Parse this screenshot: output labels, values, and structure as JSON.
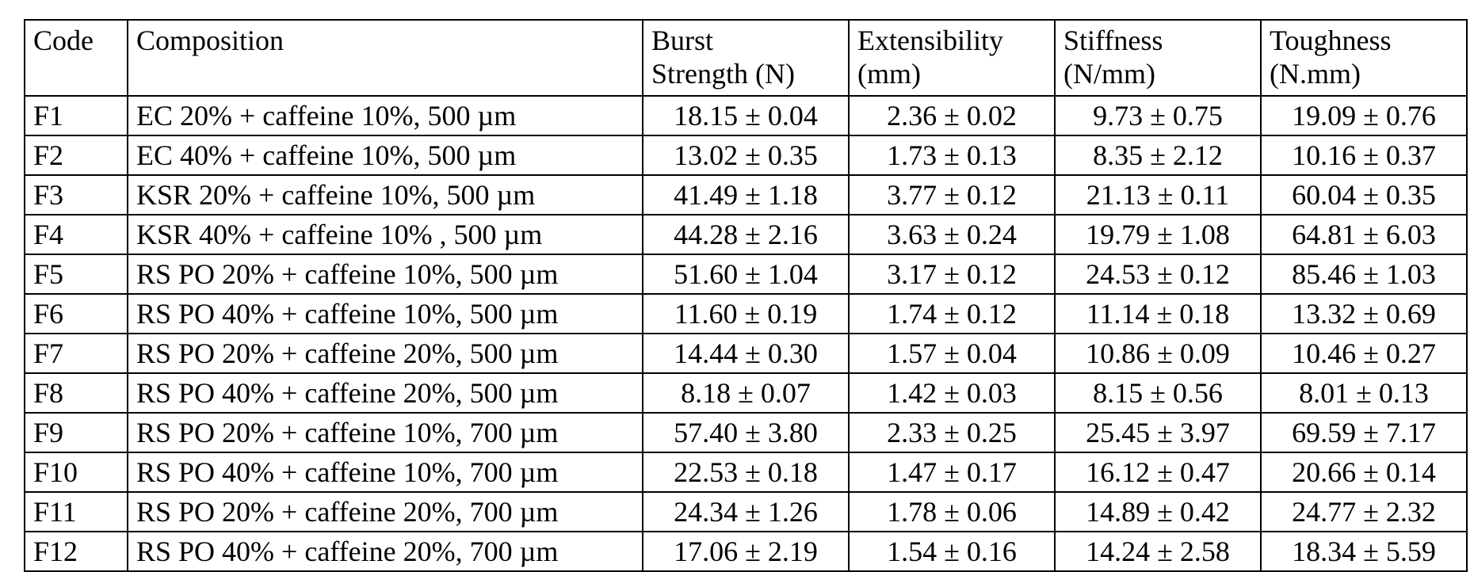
{
  "table": {
    "headers": {
      "code": [
        "Code"
      ],
      "composition": [
        "Composition"
      ],
      "burst": [
        "Burst",
        "Strength (N)"
      ],
      "extensibility": [
        "Extensibility",
        "(mm)"
      ],
      "stiffness": [
        "Stiffness",
        "(N/mm)"
      ],
      "toughness": [
        "Toughness",
        "(N.mm)"
      ]
    },
    "rows": [
      {
        "code": "F1",
        "composition": "EC 20% + caffeine 10%, 500 µm",
        "burst": "18.15 ± 0.04",
        "extensibility": "2.36 ± 0.02",
        "stiffness": "9.73 ± 0.75",
        "toughness": "19.09 ± 0.76"
      },
      {
        "code": "F2",
        "composition": "EC 40% + caffeine 10%, 500 µm",
        "burst": "13.02 ± 0.35",
        "extensibility": "1.73 ± 0.13",
        "stiffness": "8.35 ± 2.12",
        "toughness": "10.16 ± 0.37"
      },
      {
        "code": "F3",
        "composition": "KSR 20% + caffeine 10%, 500  µm",
        "burst": "41.49 ± 1.18",
        "extensibility": "3.77 ± 0.12",
        "stiffness": "21.13 ± 0.11",
        "toughness": "60.04 ± 0.35"
      },
      {
        "code": "F4",
        "composition": "KSR 40% + caffeine 10% , 500 µm",
        "burst": "44.28 ± 2.16",
        "extensibility": "3.63 ± 0.24",
        "stiffness": "19.79 ± 1.08",
        "toughness": "64.81 ± 6.03"
      },
      {
        "code": "F5",
        "composition": "RS PO 20% + caffeine 10%, 500  µm",
        "burst": "51.60 ± 1.04",
        "extensibility": "3.17 ± 0.12",
        "stiffness": "24.53 ± 0.12",
        "toughness": "85.46 ± 1.03"
      },
      {
        "code": "F6",
        "composition": "RS PO 40% + caffeine 10%, 500 µm",
        "burst": "11.60 ± 0.19",
        "extensibility": "1.74 ± 0.12",
        "stiffness": "11.14 ± 0.18",
        "toughness": "13.32 ± 0.69"
      },
      {
        "code": "F7",
        "composition": "RS PO 20% + caffeine 20%, 500 µm",
        "burst": "14.44 ± 0.30",
        "extensibility": "1.57 ± 0.04",
        "stiffness": "10.86 ± 0.09",
        "toughness": "10.46 ± 0.27"
      },
      {
        "code": "F8",
        "composition": "RS PO 40% + caffeine 20%, 500 µm",
        "burst": "8.18 ± 0.07",
        "extensibility": "1.42 ± 0.03",
        "stiffness": "8.15 ± 0.56",
        "toughness": "8.01 ± 0.13"
      },
      {
        "code": "F9",
        "composition": "RS PO 20% + caffeine 10%, 700  µm",
        "burst": "57.40 ± 3.80",
        "extensibility": "2.33 ± 0.25",
        "stiffness": "25.45 ± 3.97",
        "toughness": "69.59 ± 7.17"
      },
      {
        "code": "F10",
        "composition": "RS PO 40% + caffeine 10%, 700 µm",
        "burst": "22.53 ± 0.18",
        "extensibility": "1.47 ± 0.17",
        "stiffness": "16.12 ± 0.47",
        "toughness": "20.66 ± 0.14"
      },
      {
        "code": "F11",
        "composition": "RS PO 20% + caffeine 20%, 700 µm",
        "burst": "24.34 ± 1.26",
        "extensibility": "1.78 ± 0.06",
        "stiffness": "14.89 ± 0.42",
        "toughness": "24.77 ± 2.32"
      },
      {
        "code": "F12",
        "composition": "RS PO 40% + caffeine 20%, 700 µm",
        "burst": "17.06 ± 2.19",
        "extensibility": "1.54 ± 0.16",
        "stiffness": "14.24 ± 2.58",
        "toughness": "18.34 ± 5.59"
      }
    ]
  }
}
